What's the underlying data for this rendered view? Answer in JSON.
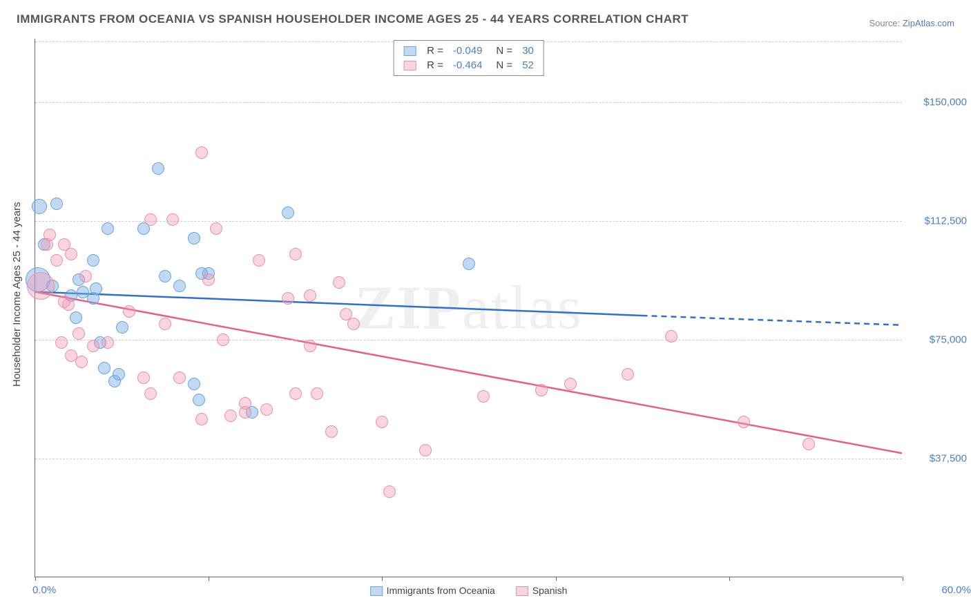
{
  "title": "IMMIGRANTS FROM OCEANIA VS SPANISH HOUSEHOLDER INCOME AGES 25 - 44 YEARS CORRELATION CHART",
  "source_prefix": "Source: ",
  "source_name": "ZipAtlas.com",
  "watermark_a": "ZIP",
  "watermark_b": "atlas",
  "chart": {
    "type": "scatter",
    "y_axis_title": "Householder Income Ages 25 - 44 years",
    "xlim": [
      0.0,
      60.0
    ],
    "ylim": [
      0,
      170000
    ],
    "x_min_label": "0.0%",
    "x_max_label": "60.0%",
    "x_tick_positions": [
      0,
      12,
      24,
      36,
      48,
      60
    ],
    "y_gridlines": [
      37500,
      75000,
      112500,
      150000
    ],
    "y_tick_labels": [
      "$37,500",
      "$75,000",
      "$112,500",
      "$150,000"
    ],
    "grid_color": "#cccccc",
    "axis_color": "#666666",
    "label_color": "#4a7ec8",
    "background_color": "#ffffff",
    "point_radius": 9,
    "point_opacity": 0.55,
    "line_width": 2.5
  },
  "series": [
    {
      "name": "Immigrants from Oceania",
      "color_fill": "rgba(120,170,230,0.45)",
      "color_stroke": "#6aa3e0",
      "line_color": "#2e6fd1",
      "R": "-0.049",
      "N": "30",
      "trend": {
        "x1": 0,
        "y1": 90000,
        "x2": 42,
        "y2": 82500,
        "x2_dash": 60,
        "y2_dash": 79500
      },
      "points": [
        {
          "x": 0.3,
          "y": 117000,
          "r": 11
        },
        {
          "x": 0.2,
          "y": 94000,
          "r": 18
        },
        {
          "x": 1.5,
          "y": 118000
        },
        {
          "x": 0.6,
          "y": 105000
        },
        {
          "x": 1.2,
          "y": 92000
        },
        {
          "x": 2.5,
          "y": 89000
        },
        {
          "x": 3.0,
          "y": 94000
        },
        {
          "x": 3.3,
          "y": 90000
        },
        {
          "x": 2.8,
          "y": 82000
        },
        {
          "x": 4.0,
          "y": 88000
        },
        {
          "x": 4.2,
          "y": 91000
        },
        {
          "x": 5.0,
          "y": 110000
        },
        {
          "x": 7.5,
          "y": 110000
        },
        {
          "x": 6.0,
          "y": 79000
        },
        {
          "x": 4.5,
          "y": 74000
        },
        {
          "x": 8.5,
          "y": 129000
        },
        {
          "x": 11.0,
          "y": 107000
        },
        {
          "x": 9.0,
          "y": 95000
        },
        {
          "x": 10.0,
          "y": 92000
        },
        {
          "x": 11.5,
          "y": 96000
        },
        {
          "x": 12.0,
          "y": 96000
        },
        {
          "x": 17.5,
          "y": 115000
        },
        {
          "x": 11.0,
          "y": 61000
        },
        {
          "x": 11.3,
          "y": 56000
        },
        {
          "x": 5.5,
          "y": 62000
        },
        {
          "x": 5.8,
          "y": 64000
        },
        {
          "x": 15.0,
          "y": 52000
        },
        {
          "x": 4.8,
          "y": 66000
        },
        {
          "x": 30.0,
          "y": 99000
        },
        {
          "x": 4.0,
          "y": 100000
        }
      ]
    },
    {
      "name": "Spanish",
      "color_fill": "rgba(240,150,175,0.40)",
      "color_stroke": "#e890aa",
      "line_color": "#e8607f",
      "R": "-0.464",
      "N": "52",
      "trend": {
        "x1": 0,
        "y1": 90000,
        "x2": 60,
        "y2": 39000,
        "x2_dash": 60,
        "y2_dash": 39000
      },
      "points": [
        {
          "x": 0.4,
          "y": 92000,
          "r": 20
        },
        {
          "x": 1.0,
          "y": 108000
        },
        {
          "x": 0.8,
          "y": 105000
        },
        {
          "x": 1.5,
          "y": 100000
        },
        {
          "x": 2.0,
          "y": 105000
        },
        {
          "x": 2.5,
          "y": 102000
        },
        {
          "x": 3.5,
          "y": 95000
        },
        {
          "x": 2.0,
          "y": 87000
        },
        {
          "x": 2.3,
          "y": 86000
        },
        {
          "x": 1.8,
          "y": 74000
        },
        {
          "x": 2.5,
          "y": 70000
        },
        {
          "x": 4.0,
          "y": 73000
        },
        {
          "x": 3.0,
          "y": 77000
        },
        {
          "x": 3.2,
          "y": 68000
        },
        {
          "x": 5.0,
          "y": 74000
        },
        {
          "x": 8.0,
          "y": 113000
        },
        {
          "x": 9.5,
          "y": 113000
        },
        {
          "x": 11.5,
          "y": 134000
        },
        {
          "x": 12.5,
          "y": 110000
        },
        {
          "x": 12.0,
          "y": 94000
        },
        {
          "x": 13.0,
          "y": 75000
        },
        {
          "x": 15.5,
          "y": 100000
        },
        {
          "x": 7.5,
          "y": 63000
        },
        {
          "x": 8.0,
          "y": 58000
        },
        {
          "x": 10.0,
          "y": 63000
        },
        {
          "x": 11.5,
          "y": 50000
        },
        {
          "x": 13.5,
          "y": 51000
        },
        {
          "x": 14.5,
          "y": 55000
        },
        {
          "x": 17.5,
          "y": 88000
        },
        {
          "x": 18.0,
          "y": 102000
        },
        {
          "x": 19.0,
          "y": 89000
        },
        {
          "x": 21.0,
          "y": 93000
        },
        {
          "x": 21.5,
          "y": 83000
        },
        {
          "x": 22.0,
          "y": 80000
        },
        {
          "x": 14.5,
          "y": 52000
        },
        {
          "x": 16.0,
          "y": 53000
        },
        {
          "x": 18.0,
          "y": 58000
        },
        {
          "x": 19.0,
          "y": 73000
        },
        {
          "x": 19.5,
          "y": 58000
        },
        {
          "x": 20.5,
          "y": 46000
        },
        {
          "x": 24.0,
          "y": 49000
        },
        {
          "x": 24.5,
          "y": 27000
        },
        {
          "x": 27.0,
          "y": 40000
        },
        {
          "x": 31.0,
          "y": 57000
        },
        {
          "x": 35.0,
          "y": 59000
        },
        {
          "x": 37.0,
          "y": 61000
        },
        {
          "x": 41.0,
          "y": 64000
        },
        {
          "x": 44.0,
          "y": 76000
        },
        {
          "x": 49.0,
          "y": 49000
        },
        {
          "x": 53.5,
          "y": 42000
        },
        {
          "x": 9.0,
          "y": 80000
        },
        {
          "x": 6.5,
          "y": 84000
        }
      ]
    }
  ]
}
